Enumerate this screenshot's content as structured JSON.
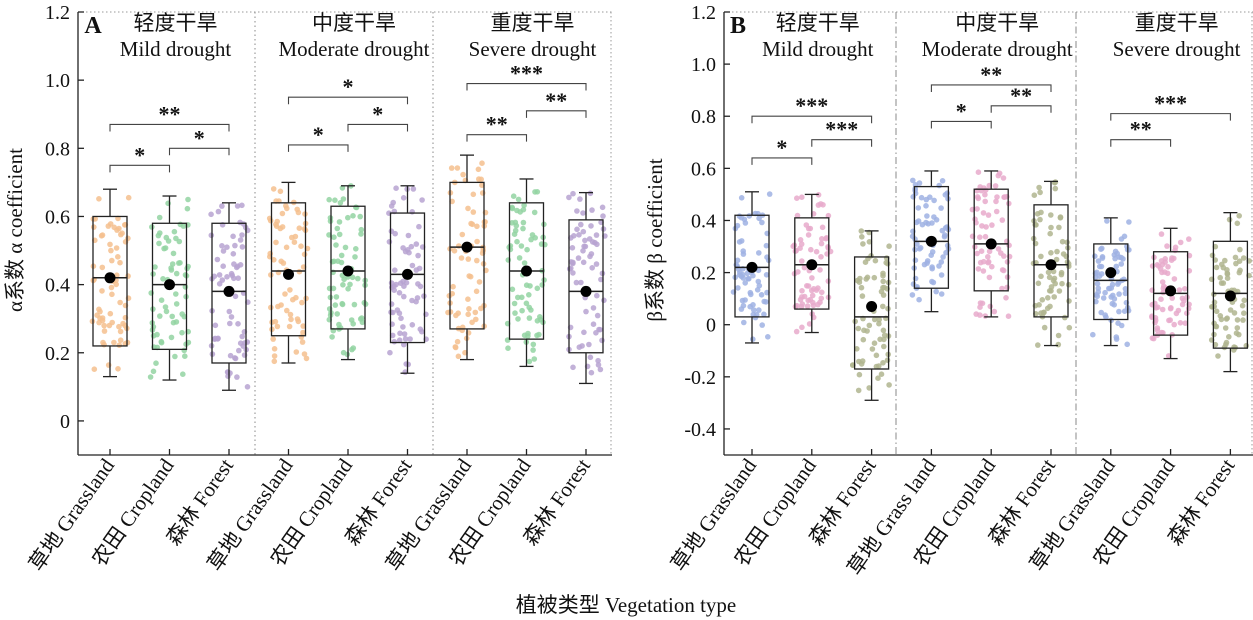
{
  "chart_data": [
    {
      "type": "box",
      "panel_label": "A",
      "ylabel": "α系数 α coefficient",
      "ylim": [
        -0.1,
        1.2
      ],
      "yticks": [
        0,
        0.2,
        0.4,
        0.6,
        0.8,
        1.0,
        1.2
      ],
      "divider_style": "dotted",
      "groups": [
        {
          "title_zh": "轻度干旱",
          "title_en": "Mild drought"
        },
        {
          "title_zh": "中度干旱",
          "title_en": "Moderate drought"
        },
        {
          "title_zh": "重度干旱",
          "title_en": "Severe drought"
        }
      ],
      "categories": [
        "草地 Grassland",
        "农田 Cropland",
        "森林 Forest",
        "草地 Grassland",
        "农田 Cropland",
        "森林 Forest",
        "草地 Grassland",
        "农田 Cropland",
        "森林 Forest"
      ],
      "boxes": [
        {
          "min": 0.13,
          "q1": 0.22,
          "median": 0.42,
          "q3": 0.6,
          "max": 0.68,
          "mean": 0.42,
          "color": "#F5C08E"
        },
        {
          "min": 0.12,
          "q1": 0.21,
          "median": 0.4,
          "q3": 0.58,
          "max": 0.66,
          "mean": 0.4,
          "color": "#93D3A2"
        },
        {
          "min": 0.09,
          "q1": 0.17,
          "median": 0.38,
          "q3": 0.58,
          "max": 0.64,
          "mean": 0.38,
          "color": "#B7A3D1"
        },
        {
          "min": 0.17,
          "q1": 0.25,
          "median": 0.44,
          "q3": 0.64,
          "max": 0.7,
          "mean": 0.43,
          "color": "#F5C08E"
        },
        {
          "min": 0.18,
          "q1": 0.27,
          "median": 0.44,
          "q3": 0.63,
          "max": 0.69,
          "mean": 0.44,
          "color": "#93D3A2"
        },
        {
          "min": 0.14,
          "q1": 0.23,
          "median": 0.43,
          "q3": 0.61,
          "max": 0.69,
          "mean": 0.43,
          "color": "#B7A3D1"
        },
        {
          "min": 0.18,
          "q1": 0.27,
          "median": 0.51,
          "q3": 0.7,
          "max": 0.78,
          "mean": 0.51,
          "color": "#F5C08E"
        },
        {
          "min": 0.16,
          "q1": 0.24,
          "median": 0.44,
          "q3": 0.64,
          "max": 0.71,
          "mean": 0.44,
          "color": "#93D3A2"
        },
        {
          "min": 0.11,
          "q1": 0.2,
          "median": 0.38,
          "q3": 0.59,
          "max": 0.67,
          "mean": 0.38,
          "color": "#B7A3D1"
        }
      ],
      "significance": [
        {
          "from": 0,
          "to": 1,
          "y": 0.75,
          "label": "*"
        },
        {
          "from": 1,
          "to": 2,
          "y": 0.8,
          "label": "*"
        },
        {
          "from": 0,
          "to": 2,
          "y": 0.87,
          "label": "**"
        },
        {
          "from": 3,
          "to": 4,
          "y": 0.81,
          "label": "*"
        },
        {
          "from": 4,
          "to": 5,
          "y": 0.87,
          "label": "*"
        },
        {
          "from": 3,
          "to": 5,
          "y": 0.95,
          "label": "*"
        },
        {
          "from": 6,
          "to": 7,
          "y": 0.84,
          "label": "**"
        },
        {
          "from": 7,
          "to": 8,
          "y": 0.91,
          "label": "**"
        },
        {
          "from": 6,
          "to": 8,
          "y": 0.99,
          "label": "***"
        }
      ]
    },
    {
      "type": "box",
      "panel_label": "B",
      "ylabel": "β系数 β coefficient",
      "ylim": [
        -0.5,
        1.2
      ],
      "yticks": [
        -0.4,
        -0.2,
        0,
        0.2,
        0.4,
        0.6,
        0.8,
        1.0,
        1.2
      ],
      "divider_style": "dash-dot",
      "groups": [
        {
          "title_zh": "轻度干旱",
          "title_en": "Mild drought"
        },
        {
          "title_zh": "中度干旱",
          "title_en": "Moderate drought"
        },
        {
          "title_zh": "重度干旱",
          "title_en": "Severe drought"
        }
      ],
      "categories": [
        "草地 Grassland",
        "农田 Cropland",
        "森林 Forest",
        "草地 Grass land",
        "农田 Cropland",
        "森林 Forest",
        "草地 Grassland",
        "农田 Cropland",
        "森林 Forest"
      ],
      "boxes": [
        {
          "min": -0.07,
          "q1": 0.03,
          "median": 0.22,
          "q3": 0.42,
          "max": 0.51,
          "mean": 0.22,
          "color": "#9FB2E3"
        },
        {
          "min": -0.03,
          "q1": 0.06,
          "median": 0.23,
          "q3": 0.41,
          "max": 0.5,
          "mean": 0.23,
          "color": "#E7AACB"
        },
        {
          "min": -0.29,
          "q1": -0.17,
          "median": 0.03,
          "q3": 0.26,
          "max": 0.36,
          "mean": 0.07,
          "color": "#B0B58F"
        },
        {
          "min": 0.05,
          "q1": 0.14,
          "median": 0.32,
          "q3": 0.53,
          "max": 0.59,
          "mean": 0.32,
          "color": "#9FB2E3"
        },
        {
          "min": 0.03,
          "q1": 0.13,
          "median": 0.31,
          "q3": 0.52,
          "max": 0.59,
          "mean": 0.31,
          "color": "#E7AACB"
        },
        {
          "min": -0.08,
          "q1": 0.03,
          "median": 0.23,
          "q3": 0.46,
          "max": 0.55,
          "mean": 0.23,
          "color": "#B0B58F"
        },
        {
          "min": -0.08,
          "q1": 0.02,
          "median": 0.17,
          "q3": 0.31,
          "max": 0.41,
          "mean": 0.2,
          "color": "#9FB2E3"
        },
        {
          "min": -0.13,
          "q1": -0.04,
          "median": 0.12,
          "q3": 0.28,
          "max": 0.37,
          "mean": 0.13,
          "color": "#E7AACB"
        },
        {
          "min": -0.18,
          "q1": -0.09,
          "median": 0.12,
          "q3": 0.32,
          "max": 0.43,
          "mean": 0.11,
          "color": "#B0B58F"
        }
      ],
      "significance": [
        {
          "from": 0,
          "to": 1,
          "y": 0.64,
          "label": "*"
        },
        {
          "from": 1,
          "to": 2,
          "y": 0.71,
          "label": "***"
        },
        {
          "from": 0,
          "to": 2,
          "y": 0.8,
          "label": "***"
        },
        {
          "from": 3,
          "to": 4,
          "y": 0.78,
          "label": "*"
        },
        {
          "from": 4,
          "to": 5,
          "y": 0.84,
          "label": "**"
        },
        {
          "from": 3,
          "to": 5,
          "y": 0.92,
          "label": "**"
        },
        {
          "from": 6,
          "to": 7,
          "y": 0.71,
          "label": "**"
        },
        {
          "from": 6,
          "to": 8,
          "y": 0.81,
          "label": "***"
        }
      ]
    }
  ],
  "xlabel": "植被类型 Vegetation type"
}
